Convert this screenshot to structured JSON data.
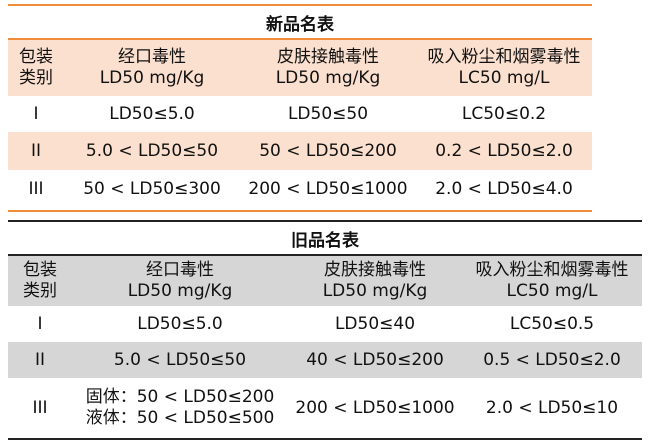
{
  "new_table": {
    "title": "新品名表",
    "header": {
      "category": [
        "包装",
        "类别"
      ],
      "oral": [
        "经口毒性",
        "LD50 mg/Kg"
      ],
      "dermal": [
        "皮肤接触毒性",
        "LD50 mg/Kg"
      ],
      "inhalation": [
        "吸入粉尘和烟雾毒性",
        "LC50 mg/L"
      ]
    },
    "rows": [
      {
        "category": "I",
        "oral": "LD50≤5.0",
        "dermal": "LD50≤50",
        "inhalation": "LC50≤0.2"
      },
      {
        "category": "II",
        "oral": "5.0 < LD50≤50",
        "dermal": "50 < LD50≤200",
        "inhalation": "0.2 < LD50≤2.0"
      },
      {
        "category": "III",
        "oral": "50 < LD50≤300",
        "dermal": "200 < LD50≤1000",
        "inhalation": "2.0 < LD50≤4.0"
      }
    ],
    "colors": {
      "rule": "#f08c3a",
      "shade": "#fbe0cf"
    }
  },
  "old_table": {
    "title": "旧品名表",
    "header": {
      "category": [
        "包装",
        "类别"
      ],
      "oral": [
        "经口毒性",
        "LD50 mg/Kg"
      ],
      "dermal": [
        "皮肤接触毒性",
        "LD50 mg/Kg"
      ],
      "inhalation": [
        "吸入粉尘和烟雾毒性",
        "LC50 mg/L"
      ]
    },
    "rows": [
      {
        "category": "I",
        "oral": [
          "LD50≤5.0"
        ],
        "dermal": "LD50≤40",
        "inhalation": "LC50≤0.5"
      },
      {
        "category": "II",
        "oral": [
          "5.0 < LD50≤50"
        ],
        "dermal": "40 < LD50≤200",
        "inhalation": "0.5 < LD50≤2.0"
      },
      {
        "category": "III",
        "oral": [
          "固体：50 < LD50≤200",
          "液体：50 < LD50≤500"
        ],
        "dermal": "200 < LD50≤1000",
        "inhalation": "2.0 < LD50≤10"
      }
    ],
    "colors": {
      "rule": "#222222",
      "shade": "#d6d6d6"
    }
  }
}
